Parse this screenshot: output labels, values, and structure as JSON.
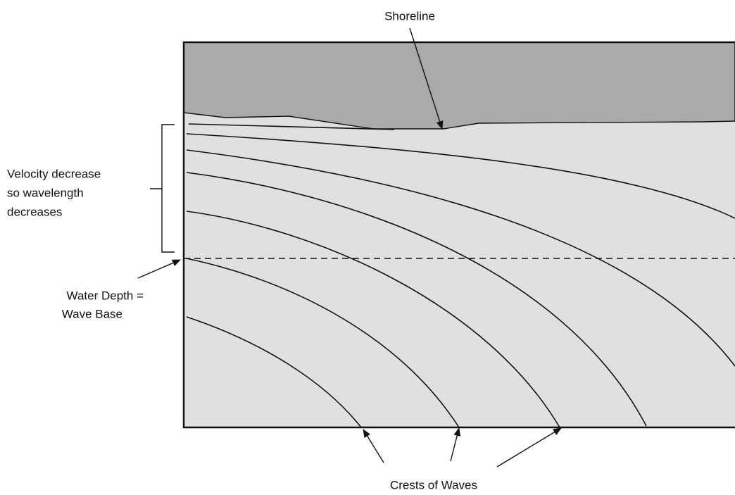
{
  "labels": {
    "shoreline": "Shoreline",
    "velocity": [
      "Velocity decrease",
      "so wavelength",
      "decreases"
    ],
    "wave_base": [
      "Water Depth =",
      "Wave Base"
    ],
    "crests": "Crests of Waves"
  }
}
